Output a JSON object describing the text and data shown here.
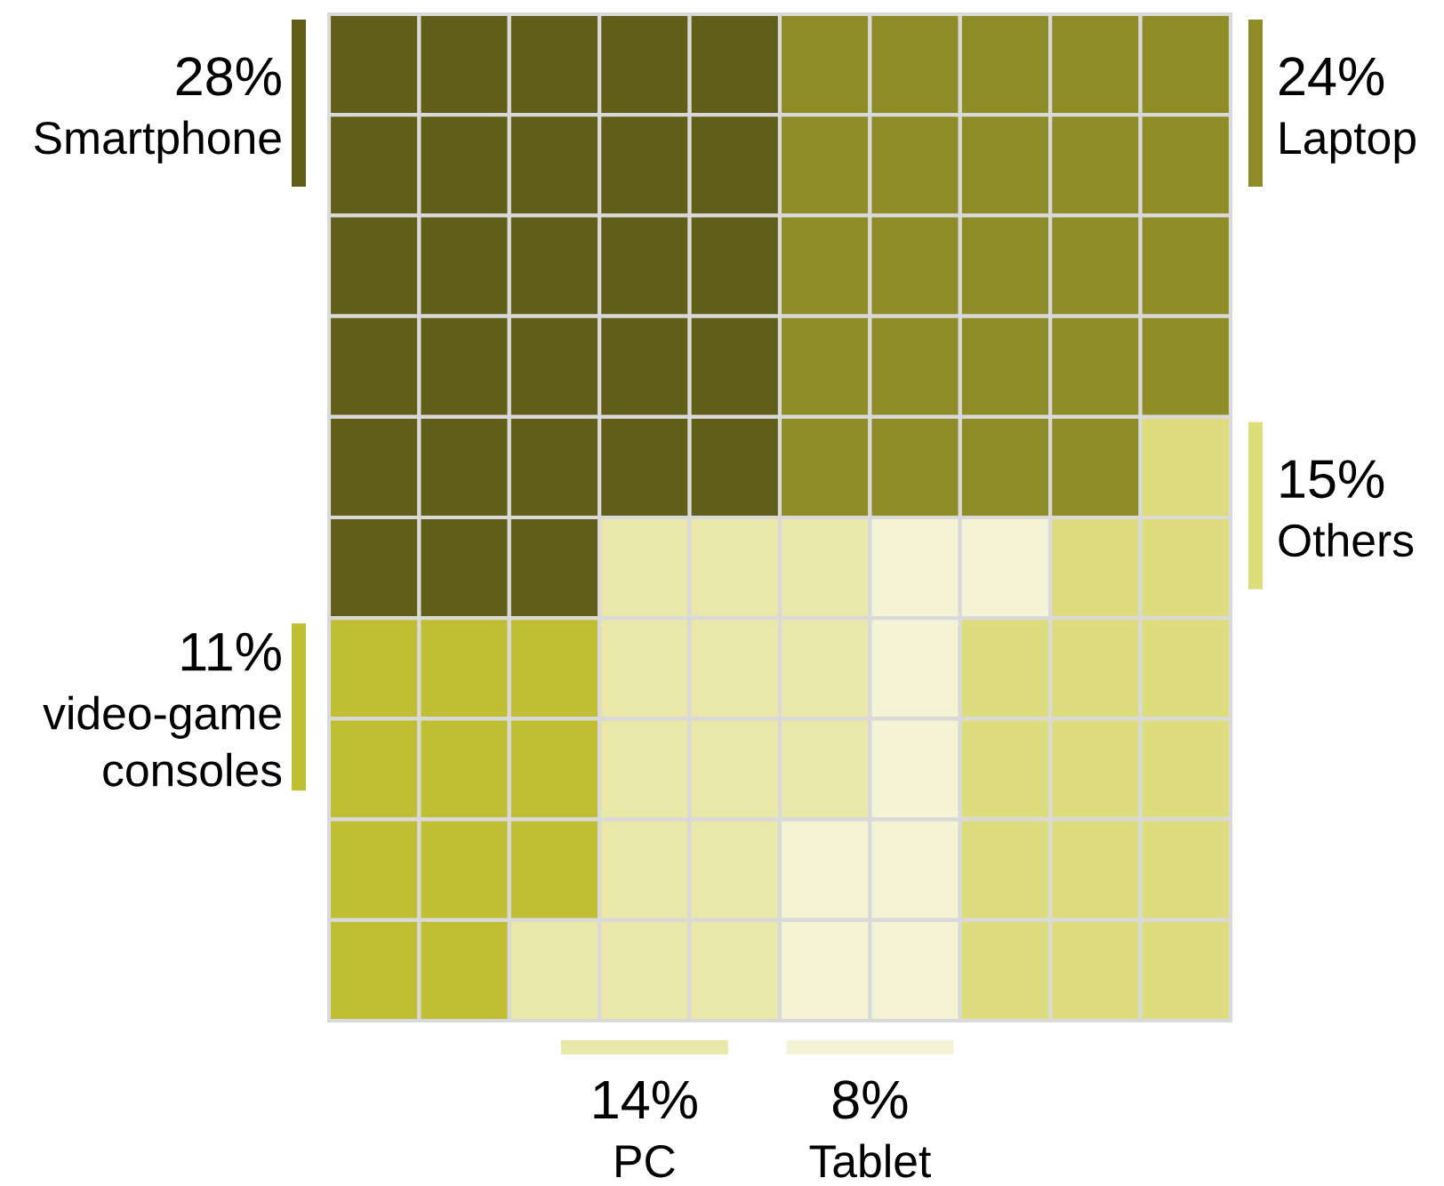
{
  "chart_data": {
    "type": "other",
    "categories": [
      "Smartphone",
      "Laptop",
      "video-game\nconsoles",
      "PC",
      "Tablet",
      "Others"
    ],
    "values": [
      28,
      24,
      11,
      14,
      8,
      15
    ],
    "value_labels": [
      "28%",
      "24%",
      "11%",
      "14%",
      "8%",
      "15%"
    ],
    "colors": [
      "#615e1a",
      "#8e8c27",
      "#c0be33",
      "#e9e8a9",
      "#f4f3d5",
      "#dedd7e"
    ]
  }
}
